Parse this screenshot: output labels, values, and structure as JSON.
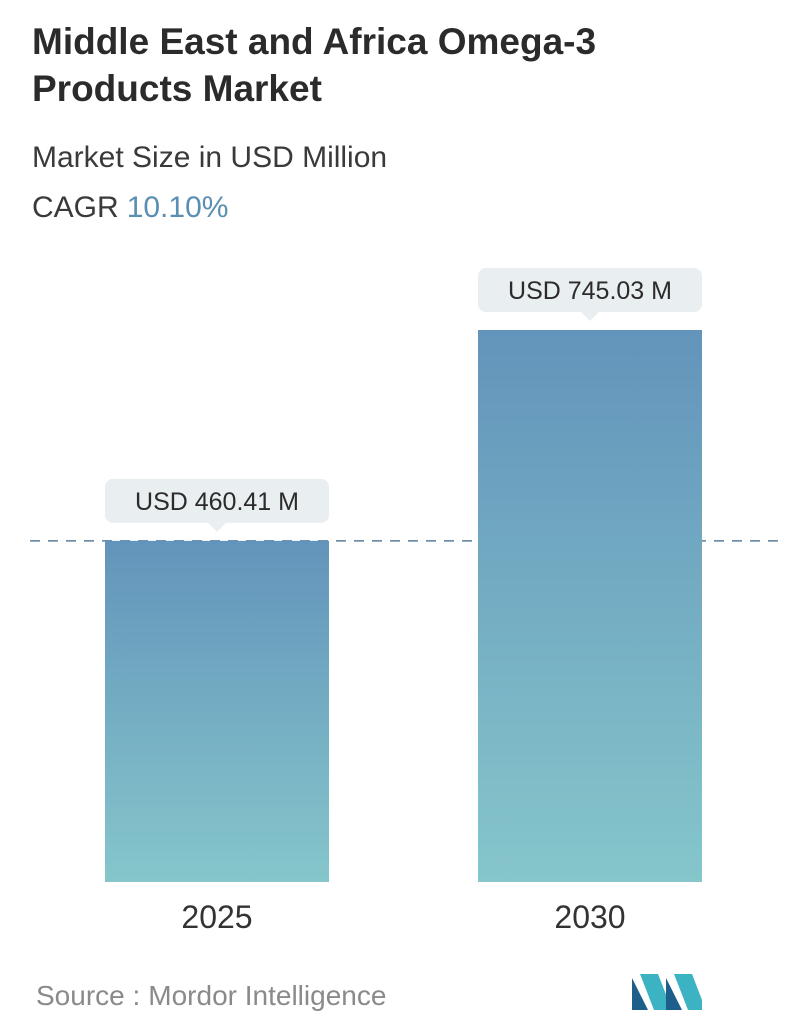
{
  "chart_data": {
    "type": "bar",
    "title": "Middle East and Africa Omega-3 Products Market",
    "subtitle": "Market Size in USD Million",
    "cagr_label": "CAGR",
    "cagr_value": "10.10%",
    "categories": [
      "2025",
      "2030"
    ],
    "values": [
      460.41,
      745.03
    ],
    "value_labels": [
      "USD 460.41 M",
      "USD 745.03 M"
    ],
    "ylim": [
      0,
      745.03
    ],
    "grid": false,
    "reference_line": {
      "value": 460.41,
      "style": "dashed"
    },
    "colors": {
      "bar_top": "#6394bb",
      "bar_bottom": "#85c6cb",
      "label_bg": "#e9eef0",
      "ref_line": "#5a7d9a"
    }
  },
  "source": {
    "label": "Source :",
    "name": "Mordor Intelligence"
  },
  "logo": {
    "icon": "mordor-intelligence-logo-icon",
    "colors": [
      "#1e5e8a",
      "#3bb3c3"
    ]
  }
}
